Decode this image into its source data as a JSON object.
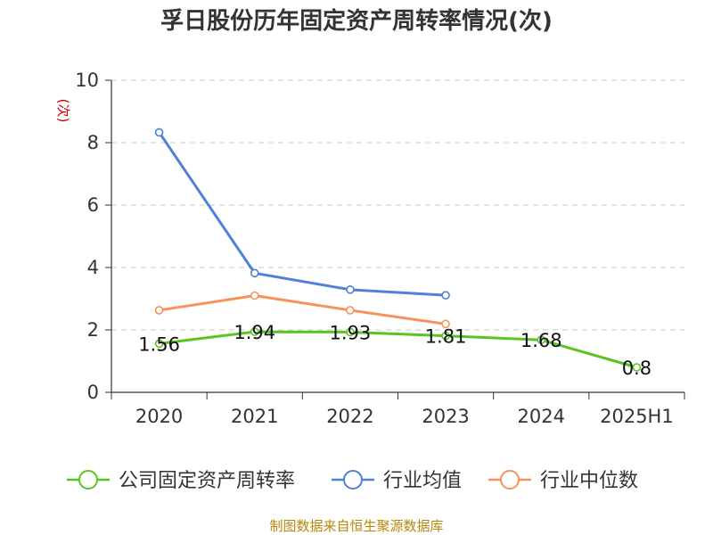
{
  "chart_data": {
    "type": "line",
    "title": "孚日股份历年固定资产周转率情况(次)",
    "ylabel": "(次)",
    "xlabel": "",
    "categories": [
      "2020",
      "2021",
      "2022",
      "2023",
      "2024",
      "2025H1"
    ],
    "ylim": [
      0,
      10
    ],
    "yticks": [
      "0",
      "2",
      "4",
      "6",
      "8",
      "10"
    ],
    "grid": true,
    "legend_position": "bottom",
    "series": [
      {
        "name": "公司固定资产周转率",
        "color": "#5bc425",
        "values": [
          1.56,
          1.94,
          1.93,
          1.81,
          1.68,
          0.8
        ],
        "labels": [
          "1.56",
          "1.94",
          "1.93",
          "1.81",
          "1.68",
          "0.8"
        ]
      },
      {
        "name": "行业均值",
        "color": "#4f81d8",
        "values": [
          8.33,
          3.82,
          3.29,
          3.11,
          null,
          null
        ]
      },
      {
        "name": "行业中位数",
        "color": "#f7925a",
        "values": [
          2.63,
          3.1,
          2.63,
          2.19,
          null,
          null
        ]
      }
    ]
  },
  "source": "制图数据来自恒生聚源数据库"
}
